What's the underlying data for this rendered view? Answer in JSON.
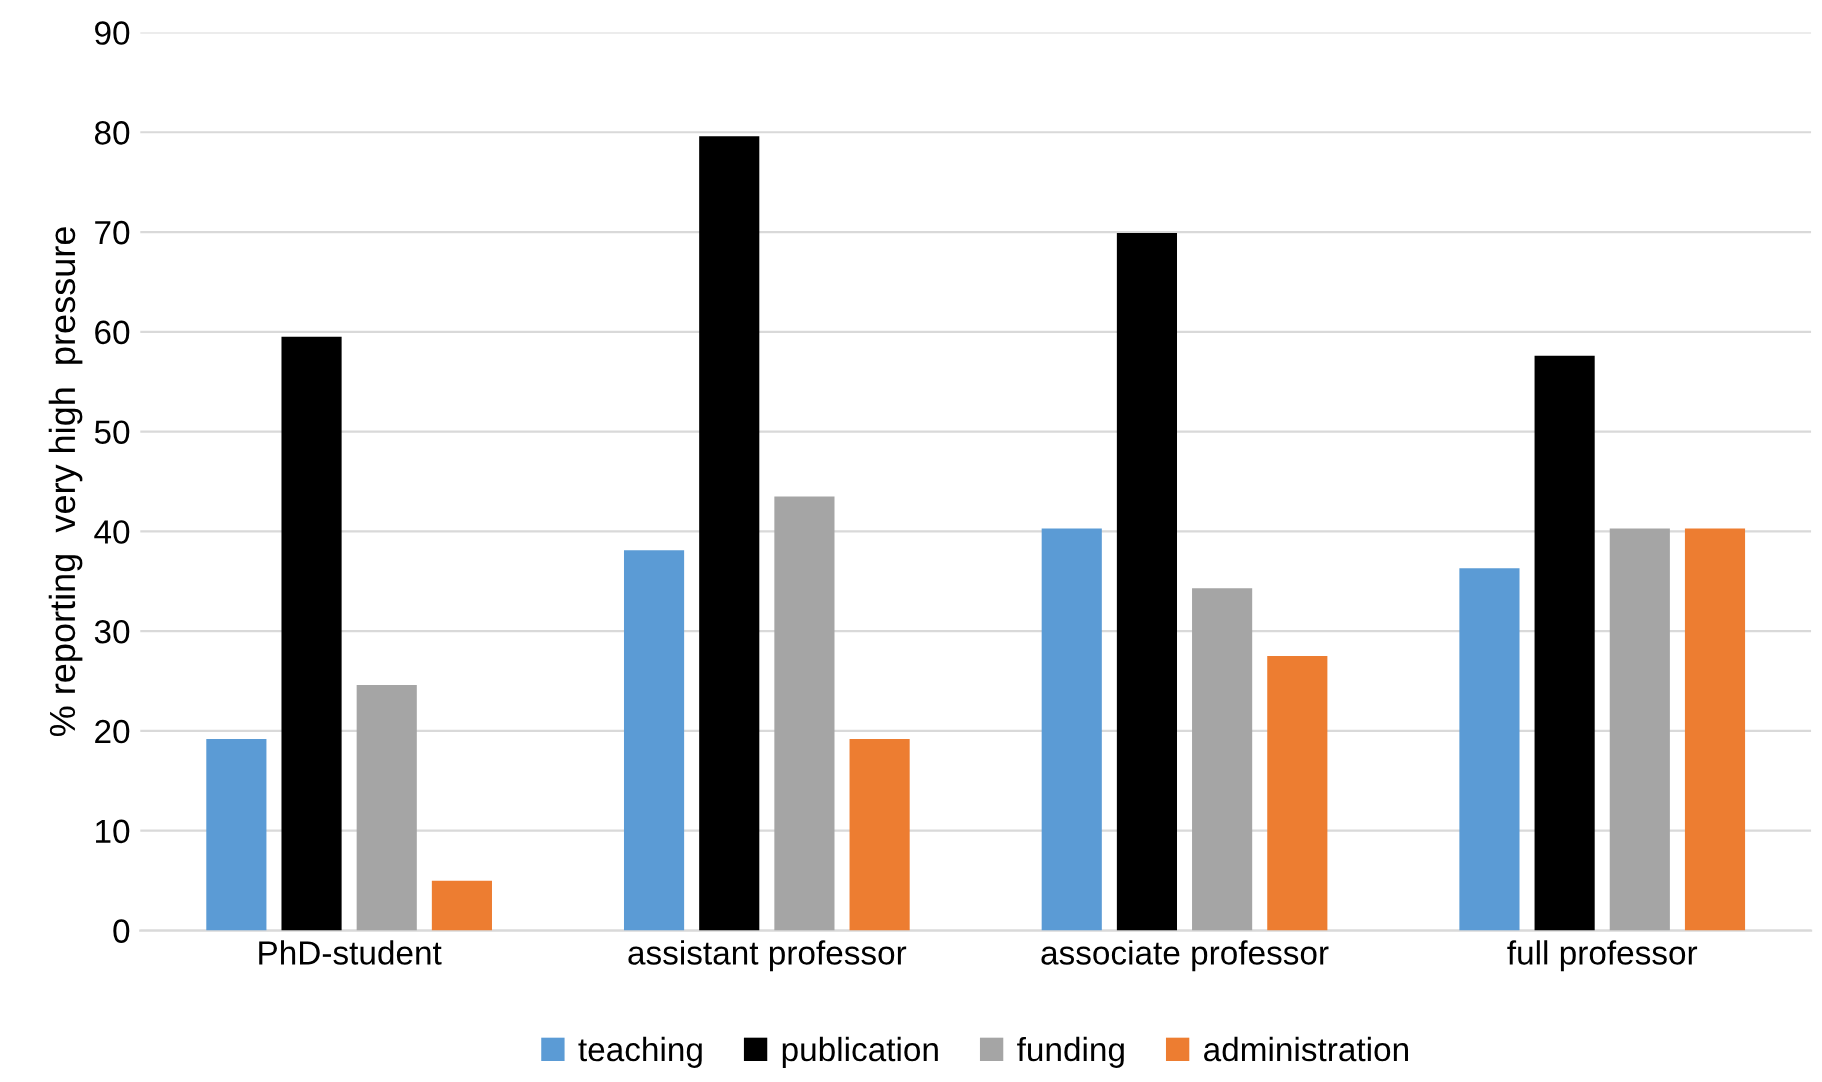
{
  "chart_data": {
    "type": "bar",
    "ylabel": "% reporting  very high  pressure",
    "categories": [
      "PhD-student",
      "assistant professor",
      "associate professor",
      "full professor"
    ],
    "series": [
      {
        "name": "teaching",
        "color": "#5b9bd5",
        "values": [
          19.2,
          38.1,
          40.3,
          36.3
        ]
      },
      {
        "name": "publication",
        "color": "#000000",
        "values": [
          59.5,
          79.6,
          69.9,
          57.6
        ]
      },
      {
        "name": "funding",
        "color": "#a5a5a5",
        "values": [
          24.6,
          43.5,
          34.3,
          40.3
        ]
      },
      {
        "name": "administration",
        "color": "#ed7d31",
        "values": [
          5.0,
          19.2,
          27.5,
          40.3
        ]
      }
    ],
    "ylim": [
      0,
      90
    ],
    "yticks": [
      0,
      10,
      20,
      30,
      40,
      50,
      60,
      70,
      80,
      90
    ],
    "grid": "y",
    "legend": "bottom"
  }
}
